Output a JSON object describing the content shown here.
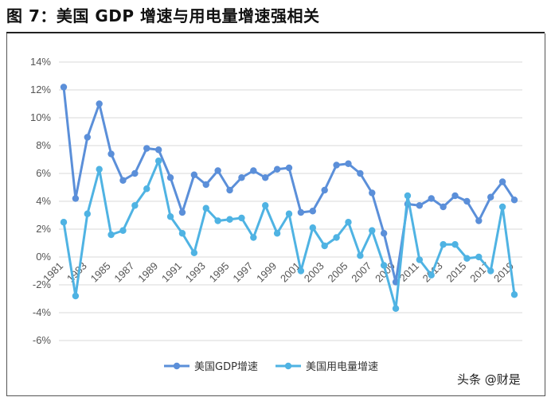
{
  "figure": {
    "title": "图 7：美国 GDP 增速与用电量增速强相关",
    "watermark": "头条 @财是"
  },
  "chart_data": {
    "type": "line",
    "x": [
      1981,
      1982,
      1983,
      1984,
      1985,
      1986,
      1987,
      1988,
      1989,
      1990,
      1991,
      1992,
      1993,
      1994,
      1995,
      1996,
      1997,
      1998,
      1999,
      2000,
      2001,
      2002,
      2003,
      2004,
      2005,
      2006,
      2007,
      2008,
      2009,
      2010,
      2011,
      2012,
      2013,
      2014,
      2015,
      2016,
      2017,
      2018,
      2019
    ],
    "x_tick_labels": [
      "1981",
      "1983",
      "1985",
      "1987",
      "1989",
      "1991",
      "1993",
      "1995",
      "1997",
      "1999",
      "2001",
      "2003",
      "2005",
      "2007",
      "2009",
      "2011",
      "2013",
      "2015",
      "2017",
      "2019"
    ],
    "y_tick_labels": [
      "14%",
      "12%",
      "10%",
      "8%",
      "6%",
      "4%",
      "2%",
      "0%",
      "-2%",
      "-4%",
      "-6%"
    ],
    "ylim": [
      -6,
      14
    ],
    "y_step": 2,
    "grid": true,
    "legend_position": "bottom-center",
    "series": [
      {
        "name": "美国GDP增速",
        "color": "#5b8fd9",
        "values": [
          12.2,
          4.2,
          8.6,
          11.0,
          7.4,
          5.5,
          6.0,
          7.8,
          7.7,
          5.7,
          3.2,
          5.9,
          5.2,
          6.2,
          4.8,
          5.7,
          6.2,
          5.7,
          6.3,
          6.4,
          3.2,
          3.3,
          4.8,
          6.6,
          6.7,
          6.0,
          4.6,
          1.7,
          -1.8,
          3.8,
          3.7,
          4.2,
          3.6,
          4.4,
          4.0,
          2.6,
          4.3,
          5.4,
          4.1
        ]
      },
      {
        "name": "美国用电量增速",
        "color": "#4fb3e3",
        "values": [
          2.5,
          -2.8,
          3.1,
          6.3,
          1.6,
          1.9,
          3.7,
          4.9,
          6.9,
          2.9,
          1.7,
          0.3,
          3.5,
          2.6,
          2.7,
          2.8,
          1.4,
          3.7,
          1.7,
          3.1,
          -1.0,
          2.1,
          0.8,
          1.4,
          2.5,
          0.1,
          1.9,
          -0.6,
          -3.7,
          4.4,
          -0.2,
          -1.3,
          0.9,
          0.9,
          -0.1,
          0.0,
          -1.0,
          3.6,
          -2.7
        ]
      }
    ]
  }
}
